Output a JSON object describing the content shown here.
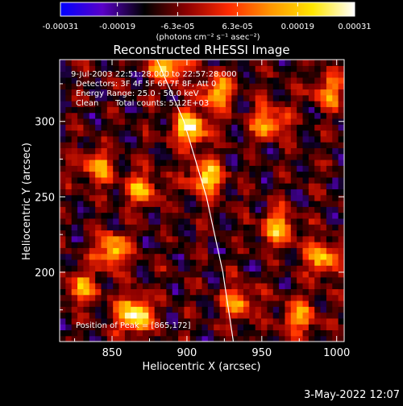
{
  "colorbar": {
    "tick_labels": [
      "-0.00031",
      "-0.00019",
      "-6.3e-05",
      "6.3e-05",
      "0.00019",
      "0.00031"
    ],
    "tick_values": [
      -0.00031,
      -0.00019,
      -6.3e-05,
      6.3e-05,
      0.00019,
      0.00031
    ],
    "range": [
      -0.00031,
      0.00031
    ],
    "units": "(photons cm⁻² s⁻¹ asec⁻²)",
    "colors": [
      "#0000ff",
      "#5a00c8",
      "#000000",
      "#8c0000",
      "#ff2a00",
      "#ff9600",
      "#ffe600",
      "#ffffff"
    ]
  },
  "chart_data": {
    "type": "heatmap",
    "title": "Reconstructed RHESSI Image",
    "xlabel": "Heliocentric X (arcsec)",
    "ylabel": "Heliocentric Y (arcsec)",
    "xlim": [
      815,
      1005
    ],
    "ylim": [
      154,
      341
    ],
    "xticks": [
      850,
      900,
      950,
      1000
    ],
    "yticks": [
      200,
      250,
      300
    ],
    "xtick_labels": [
      "850",
      "900",
      "950",
      "1000"
    ],
    "ytick_labels": [
      "200",
      "250",
      "300"
    ],
    "limb_curve": [
      [
        880,
        341
      ],
      [
        898,
        300
      ],
      [
        913,
        250
      ],
      [
        924,
        200
      ],
      [
        931,
        154
      ]
    ],
    "annotations": {
      "time": "9-Jul-2003 22:51:28.000 to 22:57:28.000",
      "detectors": "Detectors: 3F 4F 5F 6F 7F 8F, Att 0",
      "energy": "Energy Range: 25.0 - 50.0 keV",
      "clean_label": "Clean",
      "total_counts": "Total counts: 5.12E+03",
      "peak": "Position of Peak = [865,172]"
    },
    "bright_sources": [
      {
        "x": 865,
        "y": 172,
        "value": 0.00031
      },
      {
        "x": 902,
        "y": 296,
        "value": 0.00025
      },
      {
        "x": 913,
        "y": 263,
        "value": 0.00022
      },
      {
        "x": 888,
        "y": 338,
        "value": 0.00021
      },
      {
        "x": 850,
        "y": 215,
        "value": 0.00019
      },
      {
        "x": 920,
        "y": 320,
        "value": 0.00017
      },
      {
        "x": 960,
        "y": 230,
        "value": 0.00016
      },
      {
        "x": 955,
        "y": 300,
        "value": 0.00015
      },
      {
        "x": 990,
        "y": 210,
        "value": 0.00014
      },
      {
        "x": 840,
        "y": 270,
        "value": 0.00013
      },
      {
        "x": 975,
        "y": 170,
        "value": 0.00012
      },
      {
        "x": 870,
        "y": 255,
        "value": 0.00012
      },
      {
        "x": 935,
        "y": 180,
        "value": 0.00011
      },
      {
        "x": 995,
        "y": 320,
        "value": 0.0001
      },
      {
        "x": 830,
        "y": 190,
        "value": 0.0001
      }
    ],
    "background_level": -0.00012
  },
  "footer": {
    "timestamp": "3-May-2022 12:07"
  }
}
